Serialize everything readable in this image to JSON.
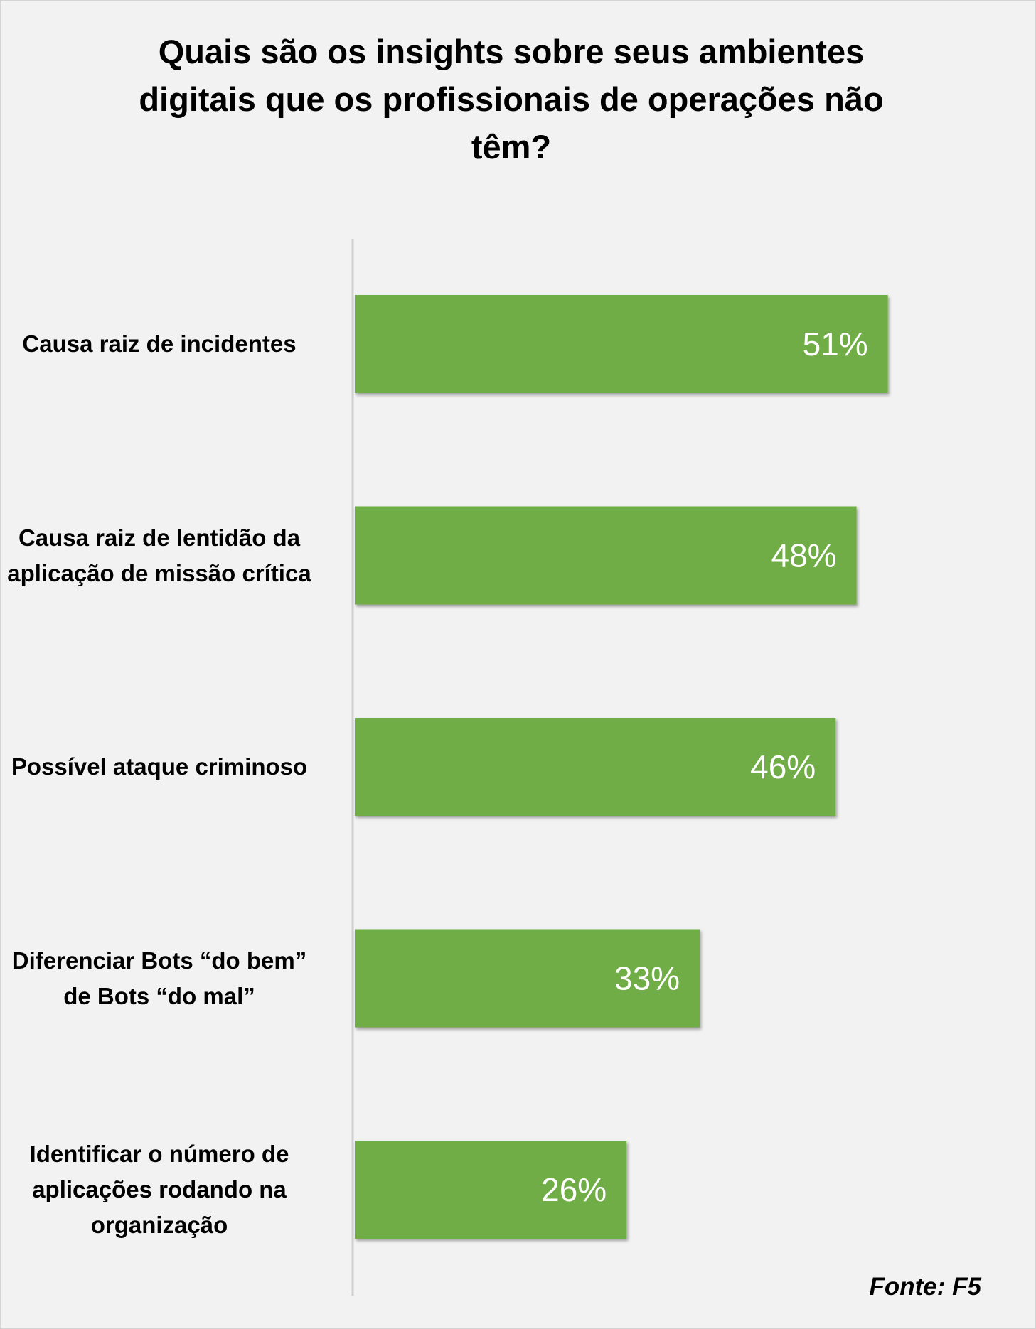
{
  "chart_data": {
    "type": "bar",
    "orientation": "horizontal",
    "title": "Quais são os insights sobre seus ambientes digitais que os profissionais de operações não têm?",
    "categories": [
      "Causa raiz de incidentes",
      "Causa raiz de lentidão da aplicação de missão crítica",
      "Possível ataque criminoso",
      "Diferenciar Bots “do bem” de Bots “do mal”",
      "Identificar o número de aplicações rodando na organização"
    ],
    "values": [
      51,
      48,
      46,
      33,
      26
    ],
    "data_labels": [
      "51%",
      "48%",
      "46%",
      "33%",
      "26%"
    ],
    "unit": "%",
    "xlim": [
      0,
      56
    ],
    "grid": false,
    "legend": "none",
    "bar_color": "#70ad47",
    "label_color": "#ffffff",
    "source": "Fonte: F5"
  }
}
